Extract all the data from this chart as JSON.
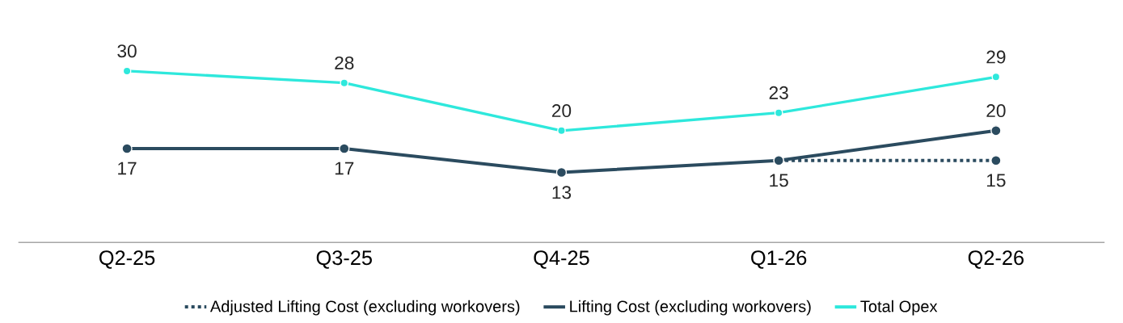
{
  "chart_data": {
    "type": "line",
    "categories": [
      "Q2-25",
      "Q3-25",
      "Q4-25",
      "Q1-26",
      "Q2-26"
    ],
    "series": [
      {
        "name": "Adjusted Lifting Cost (excluding workovers)",
        "color": "#2b4b5f",
        "values": [
          null,
          null,
          null,
          15,
          15
        ],
        "value_labels": [
          null,
          null,
          null,
          null,
          "15"
        ],
        "line_style": "dashed"
      },
      {
        "name": "Lifting Cost (excluding workovers)",
        "color": "#2b4b5f",
        "values": [
          17,
          17,
          13,
          15,
          20
        ],
        "value_labels": [
          "17",
          "17",
          "13",
          "15",
          "20"
        ],
        "line_style": "solid"
      },
      {
        "name": "Total Opex",
        "color": "#2ee8dc",
        "values": [
          30,
          28,
          20,
          23,
          29
        ],
        "value_labels": [
          "30",
          "28",
          "20",
          "23",
          "29"
        ],
        "line_style": "solid"
      }
    ],
    "marker": "circle",
    "legend": "bottom",
    "grid": false,
    "tick_labels": "x"
  }
}
